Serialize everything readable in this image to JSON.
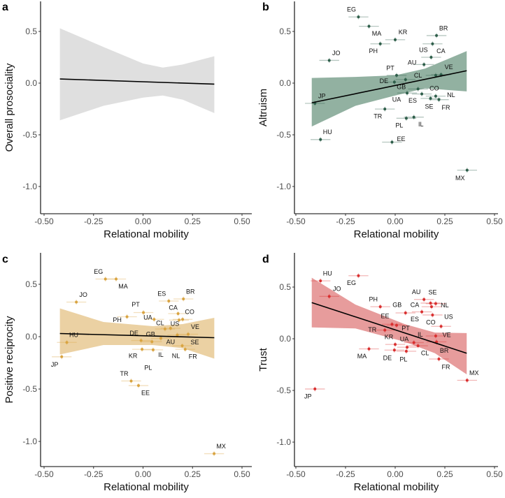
{
  "chart_data": [
    {
      "type": "scatter",
      "panel": "a",
      "ylabel": "Overall prosociality",
      "xlabel": "Relational mobility",
      "xlim": [
        -0.52,
        0.52
      ],
      "ylim": [
        -1.27,
        0.78
      ],
      "xticks": [
        "-0.50",
        "-0.25",
        "0.00",
        "0.25",
        "0.50"
      ],
      "xtick_values": [
        -0.5,
        -0.25,
        0,
        0.25,
        0.5
      ],
      "yticks": [
        "0.5",
        "0.0",
        "-0.5",
        "-1.0"
      ],
      "ytick_values": [
        0.5,
        0,
        -0.5,
        -1.0
      ],
      "colors": {
        "point": "#2e5e4a",
        "band": "#d9d9d9",
        "line": "#000000"
      },
      "regression": {
        "x": [
          -0.42,
          0.36
        ],
        "y": [
          0.04,
          -0.01
        ]
      },
      "band": {
        "x": [
          -0.42,
          -0.2,
          0.0,
          0.1,
          0.2,
          0.36
        ],
        "upper": [
          0.53,
          0.35,
          0.19,
          0.15,
          0.18,
          0.26
        ],
        "lower": [
          -0.36,
          -0.22,
          -0.14,
          -0.12,
          -0.16,
          -0.29
        ]
      },
      "x_error": 0.05,
      "points": []
    },
    {
      "type": "scatter",
      "panel": "b",
      "ylabel": "Altruism",
      "xlabel": "Relational mobility",
      "xlim": [
        -0.52,
        0.52
      ],
      "ylim": [
        -1.27,
        0.78
      ],
      "xticks": [
        "-0.50",
        "-0.25",
        "0.00",
        "0.25",
        "0.50"
      ],
      "xtick_values": [
        -0.5,
        -0.25,
        0,
        0.25,
        0.5
      ],
      "yticks": [
        "0.5",
        "0.0",
        "-0.5",
        "-1.0"
      ],
      "ytick_values": [
        0.5,
        0,
        -0.5,
        -1.0
      ],
      "colors": {
        "point": "#2e5e4a",
        "band": "#7fa390",
        "line": "#000000"
      },
      "regression": {
        "x": [
          -0.42,
          0.36
        ],
        "y": [
          -0.19,
          0.12
        ]
      },
      "band": {
        "x": [
          -0.42,
          -0.2,
          0.0,
          0.15,
          0.36
        ],
        "upper": [
          0.05,
          0.06,
          0.075,
          0.14,
          0.31
        ],
        "lower": [
          -0.42,
          -0.22,
          -0.12,
          -0.05,
          -0.08
        ]
      },
      "x_error": 0.05,
      "points": [
        {
          "label": "EG",
          "x": -0.185,
          "y": 0.64
        },
        {
          "label": "MA",
          "x": -0.132,
          "y": 0.55
        },
        {
          "label": "KR",
          "x": 0.0,
          "y": 0.42
        },
        {
          "label": "PH",
          "x": -0.075,
          "y": 0.38
        },
        {
          "label": "BR",
          "x": 0.208,
          "y": 0.46
        },
        {
          "label": "CA",
          "x": 0.188,
          "y": 0.38
        },
        {
          "label": "US",
          "x": 0.181,
          "y": 0.25
        },
        {
          "label": "JO",
          "x": -0.332,
          "y": 0.22
        },
        {
          "label": "AU",
          "x": 0.145,
          "y": 0.18
        },
        {
          "label": "PT",
          "x": 0.007,
          "y": 0.075
        },
        {
          "label": "DE",
          "x": -0.004,
          "y": 0.01
        },
        {
          "label": "GB",
          "x": 0.052,
          "y": 0.034
        },
        {
          "label": "UA",
          "x": 0.06,
          "y": -0.096
        },
        {
          "label": "CL",
          "x": 0.115,
          "y": -0.057
        },
        {
          "label": "VE",
          "x": 0.231,
          "y": 0.082
        },
        {
          "label": "CO",
          "x": 0.204,
          "y": 0.075
        },
        {
          "label": "ES",
          "x": 0.134,
          "y": -0.105
        },
        {
          "label": "SE",
          "x": 0.178,
          "y": -0.148
        },
        {
          "label": "NL",
          "x": 0.204,
          "y": -0.126
        },
        {
          "label": "FR",
          "x": 0.22,
          "y": -0.16
        },
        {
          "label": "JP",
          "x": -0.404,
          "y": -0.196
        },
        {
          "label": "TR",
          "x": -0.052,
          "y": -0.251
        },
        {
          "label": "PL",
          "x": 0.056,
          "y": -0.34
        },
        {
          "label": "IL",
          "x": 0.094,
          "y": -0.329
        },
        {
          "label": "HU",
          "x": -0.376,
          "y": -0.546
        },
        {
          "label": "EE",
          "x": -0.016,
          "y": -0.571
        },
        {
          "label": "MX",
          "x": 0.362,
          "y": -0.842
        }
      ]
    },
    {
      "type": "scatter",
      "panel": "c",
      "ylabel": "Positive reciprocity",
      "xlabel": "Relational mobility",
      "xlim": [
        -0.52,
        0.52
      ],
      "ylim": [
        -1.24,
        0.8
      ],
      "xticks": [
        "-0.50",
        "-0.25",
        "0.00",
        "0.25",
        "0.50"
      ],
      "xtick_values": [
        -0.5,
        -0.25,
        0,
        0.25,
        0.5
      ],
      "yticks": [
        "0.5",
        "0.0",
        "-0.5",
        "-1.0"
      ],
      "ytick_values": [
        0.5,
        0,
        -0.5,
        -1.0
      ],
      "colors": {
        "point": "#d9a441",
        "band": "#e8c993",
        "line": "#000000"
      },
      "regression": {
        "x": [
          -0.42,
          0.36
        ],
        "y": [
          0.03,
          -0.01
        ]
      },
      "band": {
        "x": [
          -0.42,
          -0.2,
          0.05,
          0.2,
          0.36
        ],
        "upper": [
          0.27,
          0.14,
          0.1,
          0.12,
          0.18
        ],
        "lower": [
          -0.17,
          -0.08,
          -0.08,
          -0.11,
          -0.21
        ]
      },
      "x_error": 0.05,
      "points": [
        {
          "label": "EG",
          "x": -0.19,
          "y": 0.55
        },
        {
          "label": "MA",
          "x": -0.136,
          "y": 0.55
        },
        {
          "label": "JO",
          "x": -0.337,
          "y": 0.33
        },
        {
          "label": "ES",
          "x": 0.13,
          "y": 0.34
        },
        {
          "label": "BR",
          "x": 0.204,
          "y": 0.36
        },
        {
          "label": "PT",
          "x": 0.002,
          "y": 0.23
        },
        {
          "label": "CA",
          "x": 0.177,
          "y": 0.22
        },
        {
          "label": "PH",
          "x": -0.081,
          "y": 0.19
        },
        {
          "label": "UA",
          "x": 0.056,
          "y": 0.165
        },
        {
          "label": "CO",
          "x": 0.2,
          "y": 0.165
        },
        {
          "label": "US",
          "x": 0.182,
          "y": 0.158
        },
        {
          "label": "CL",
          "x": 0.111,
          "y": 0.073
        },
        {
          "label": "AU",
          "x": 0.139,
          "y": 0.08
        },
        {
          "label": "VE",
          "x": 0.228,
          "y": 0.023
        },
        {
          "label": "SE",
          "x": 0.173,
          "y": 0.016
        },
        {
          "label": "HU",
          "x": -0.385,
          "y": -0.055
        },
        {
          "label": "DE",
          "x": -0.01,
          "y": -0.037
        },
        {
          "label": "GB",
          "x": 0.045,
          "y": -0.048
        },
        {
          "label": "IL",
          "x": 0.09,
          "y": -0.016
        },
        {
          "label": "KR",
          "x": -0.005,
          "y": -0.121
        },
        {
          "label": "PL",
          "x": 0.051,
          "y": -0.126
        },
        {
          "label": "NL",
          "x": 0.198,
          "y": -0.087
        },
        {
          "label": "FR",
          "x": 0.213,
          "y": -0.121
        },
        {
          "label": "JP",
          "x": -0.411,
          "y": -0.192
        },
        {
          "label": "TR",
          "x": -0.06,
          "y": -0.423
        },
        {
          "label": "EE",
          "x": -0.023,
          "y": -0.467
        },
        {
          "label": "MX",
          "x": 0.359,
          "y": -1.117
        }
      ]
    },
    {
      "type": "scatter",
      "panel": "d",
      "ylabel": "Trust",
      "xlabel": "Relational mobility",
      "xlim": [
        -0.52,
        0.52
      ],
      "ylim": [
        -1.24,
        0.8
      ],
      "xticks": [
        "-0.50",
        "-0.25",
        "0.00",
        "0.25",
        "0.50"
      ],
      "xtick_values": [
        -0.5,
        -0.25,
        0,
        0.25,
        0.5
      ],
      "yticks": [
        "0.5",
        "0.0",
        "-0.5",
        "-1.0"
      ],
      "ytick_values": [
        0.5,
        0,
        -0.5,
        -1.0
      ],
      "colors": {
        "point": "#d93030",
        "band": "#e38b8b",
        "line": "#000000"
      },
      "regression": {
        "x": [
          -0.42,
          0.36
        ],
        "y": [
          0.35,
          -0.14
        ]
      },
      "band": {
        "x": [
          -0.42,
          -0.2,
          0.05,
          0.2,
          0.36
        ],
        "upper": [
          0.59,
          0.33,
          0.14,
          0.06,
          0.055
        ],
        "lower": [
          0.11,
          0.1,
          -0.03,
          -0.14,
          -0.345
        ]
      },
      "x_error": 0.05,
      "points": [
        {
          "label": "HU",
          "x": -0.376,
          "y": 0.56
        },
        {
          "label": "EG",
          "x": -0.185,
          "y": 0.61
        },
        {
          "label": "JO",
          "x": -0.332,
          "y": 0.41
        },
        {
          "label": "AU",
          "x": 0.145,
          "y": 0.38
        },
        {
          "label": "SE",
          "x": 0.178,
          "y": 0.345
        },
        {
          "label": "NL",
          "x": 0.204,
          "y": 0.34
        },
        {
          "label": "CA",
          "x": 0.183,
          "y": 0.31
        },
        {
          "label": "PH",
          "x": -0.075,
          "y": 0.31
        },
        {
          "label": "GB",
          "x": 0.052,
          "y": 0.25
        },
        {
          "label": "ES",
          "x": 0.134,
          "y": 0.26
        },
        {
          "label": "US",
          "x": 0.188,
          "y": 0.23
        },
        {
          "label": "VE",
          "x": 0.231,
          "y": 0.12
        },
        {
          "label": "EE",
          "x": -0.016,
          "y": 0.14
        },
        {
          "label": "PT",
          "x": 0.007,
          "y": 0.13
        },
        {
          "label": "TR",
          "x": -0.052,
          "y": 0.084
        },
        {
          "label": "CO",
          "x": 0.204,
          "y": 0.027
        },
        {
          "label": "IL",
          "x": 0.094,
          "y": -0.037
        },
        {
          "label": "KR",
          "x": 0.0,
          "y": -0.055
        },
        {
          "label": "UA",
          "x": 0.06,
          "y": -0.082
        },
        {
          "label": "CL",
          "x": 0.115,
          "y": -0.068
        },
        {
          "label": "BR",
          "x": 0.208,
          "y": -0.03
        },
        {
          "label": "MA",
          "x": -0.132,
          "y": -0.098
        },
        {
          "label": "DE",
          "x": -0.004,
          "y": -0.11
        },
        {
          "label": "PL",
          "x": 0.056,
          "y": -0.121
        },
        {
          "label": "FR",
          "x": 0.22,
          "y": -0.196
        },
        {
          "label": "MX",
          "x": 0.362,
          "y": -0.402
        },
        {
          "label": "JP",
          "x": -0.404,
          "y": -0.486
        }
      ]
    }
  ]
}
